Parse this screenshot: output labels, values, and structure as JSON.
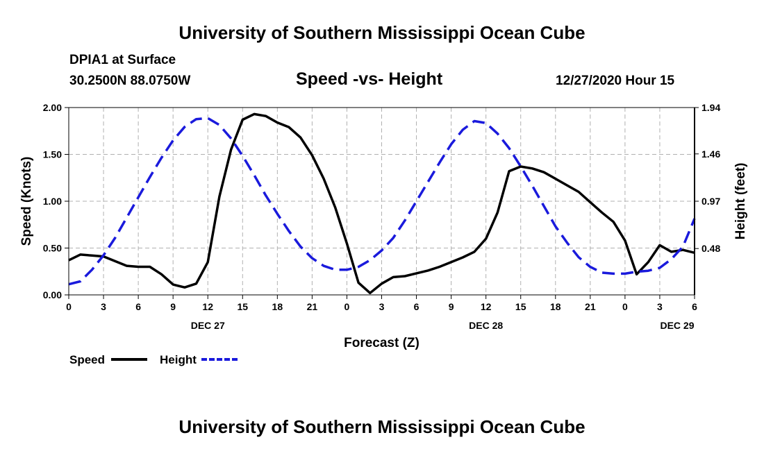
{
  "page": {
    "title_top": "University of Southern Mississippi Ocean Cube",
    "title_bottom": "University of Southern Mississippi Ocean Cube",
    "station": "DPIA1 at Surface",
    "coords": "30.2500N 88.0750W",
    "date_label": "12/27/2020 Hour 15"
  },
  "colors": {
    "speed": "#000000",
    "height": "#1a1adc",
    "grid": "#b0b0b0"
  },
  "chart_data": {
    "type": "line",
    "title": "Speed -vs- Height",
    "xlabel": "Forecast (Z)",
    "ylabel_left": "Speed (Knots)",
    "ylabel_right": "Height (feet)",
    "x_range_hours": [
      0,
      54
    ],
    "x_tick_labels": [
      "0",
      "3",
      "6",
      "9",
      "12",
      "15",
      "18",
      "21",
      "0",
      "3",
      "6",
      "9",
      "12",
      "15",
      "18",
      "21",
      "0",
      "3",
      "6"
    ],
    "x_day_labels": [
      {
        "hour": 12,
        "label": "DEC 27"
      },
      {
        "hour": 36,
        "label": "DEC 28"
      },
      {
        "hour": 52.5,
        "label": "DEC 29"
      }
    ],
    "ylim_left": [
      0,
      2.0
    ],
    "y_ticks_left": [
      "0.00",
      "0.50",
      "1.00",
      "1.50",
      "2.00"
    ],
    "ylim_right": [
      0,
      1.94
    ],
    "y_ticks_right": [
      "0.48",
      "0.97",
      "1.46",
      "1.94"
    ],
    "grid": true,
    "series": [
      {
        "name": "Speed",
        "axis": "left",
        "style": "solid",
        "x": [
          0,
          1,
          2,
          3,
          4,
          5,
          6,
          7,
          8,
          9,
          10,
          11,
          12,
          13,
          14,
          15,
          16,
          17,
          18,
          19,
          20,
          21,
          22,
          23,
          24,
          25,
          26,
          27,
          28,
          29,
          30,
          31,
          32,
          33,
          34,
          35,
          36,
          37,
          38,
          39,
          40,
          41,
          42,
          43,
          44,
          45,
          46,
          47,
          48,
          49,
          50,
          51,
          52,
          53,
          54
        ],
        "values": [
          0.37,
          0.43,
          0.42,
          0.41,
          0.36,
          0.31,
          0.3,
          0.3,
          0.22,
          0.11,
          0.08,
          0.12,
          0.35,
          1.05,
          1.55,
          1.87,
          1.93,
          1.91,
          1.84,
          1.79,
          1.68,
          1.49,
          1.24,
          0.93,
          0.55,
          0.13,
          0.02,
          0.12,
          0.19,
          0.2,
          0.23,
          0.26,
          0.3,
          0.35,
          0.4,
          0.46,
          0.6,
          0.88,
          1.32,
          1.37,
          1.35,
          1.31,
          1.24,
          1.17,
          1.1,
          0.99,
          0.88,
          0.78,
          0.58,
          0.22,
          0.35,
          0.53,
          0.46,
          0.48,
          0.45
        ]
      },
      {
        "name": "Height",
        "axis": "right",
        "style": "dashed",
        "x": [
          0,
          1,
          2,
          3,
          4,
          5,
          6,
          7,
          8,
          9,
          10,
          11,
          12,
          13,
          14,
          15,
          16,
          17,
          18,
          19,
          20,
          21,
          22,
          23,
          24,
          25,
          26,
          27,
          28,
          29,
          30,
          31,
          32,
          33,
          34,
          35,
          36,
          37,
          38,
          39,
          40,
          41,
          42,
          43,
          44,
          45,
          46,
          47,
          48,
          49,
          50,
          51,
          52,
          53,
          54
        ],
        "values": [
          0.11,
          0.14,
          0.26,
          0.41,
          0.59,
          0.8,
          1.01,
          1.22,
          1.42,
          1.6,
          1.74,
          1.82,
          1.83,
          1.76,
          1.62,
          1.44,
          1.24,
          1.03,
          0.84,
          0.66,
          0.5,
          0.38,
          0.3,
          0.26,
          0.26,
          0.29,
          0.36,
          0.46,
          0.59,
          0.77,
          0.97,
          1.17,
          1.37,
          1.56,
          1.71,
          1.8,
          1.78,
          1.67,
          1.52,
          1.33,
          1.13,
          0.92,
          0.71,
          0.54,
          0.39,
          0.29,
          0.23,
          0.22,
          0.22,
          0.24,
          0.25,
          0.28,
          0.37,
          0.5,
          0.79
        ]
      }
    ]
  },
  "legend": {
    "speed_label": "Speed",
    "height_label": "Height"
  }
}
